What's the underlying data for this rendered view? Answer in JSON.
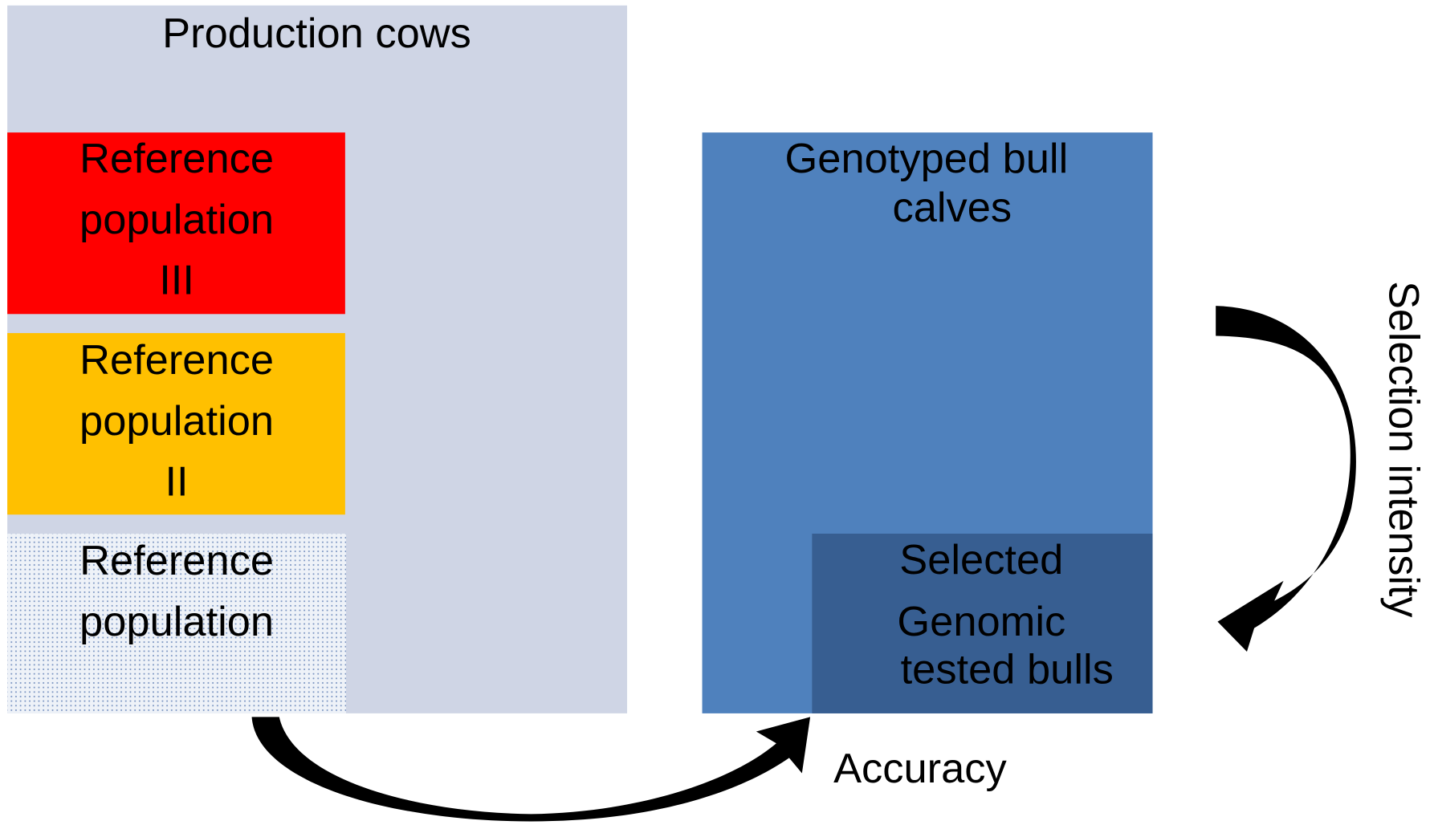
{
  "production_cows": {
    "title": "Production cows"
  },
  "reference_boxes": [
    {
      "lines": [
        "Reference",
        "population",
        "III"
      ]
    },
    {
      "lines": [
        "Reference",
        "population",
        "II"
      ]
    },
    {
      "lines": [
        "Reference",
        "population"
      ]
    }
  ],
  "genotyped_box": {
    "lines": [
      "Genotyped bull",
      "calves"
    ]
  },
  "selected_box": {
    "lines": [
      "Selected",
      "Genomic",
      "tested bulls"
    ]
  },
  "arrows": {
    "right_label": "Selection intensity",
    "bottom_label": "Accuracy"
  }
}
